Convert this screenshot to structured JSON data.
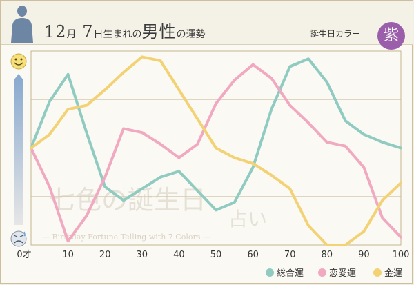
{
  "header": {
    "title_month_num": "12",
    "title_month_char": "月",
    "title_day_num": "7",
    "title_mid": "日生まれの",
    "title_big": "男性",
    "title_end": "の運勢",
    "birth_color_label": "誕生日カラー",
    "birth_color_char": "紫",
    "birth_color": "#9b5eaa"
  },
  "watermark": {
    "main": "七色の誕生日",
    "sub": "占い",
    "en": "— Birthday Fortune Telling with 7 Colors —"
  },
  "icons": {
    "top": "smile-face-icon",
    "bottom": "worried-face-icon"
  },
  "chart_data": {
    "type": "line",
    "x_tick_labels": [
      "0才",
      "10",
      "20",
      "30",
      "40",
      "50",
      "60",
      "70",
      "80",
      "90",
      "100"
    ],
    "xlim": [
      0,
      100
    ],
    "ylim": [
      0,
      100
    ],
    "grid": "horizontal",
    "legend_position": "bottom-right",
    "series": [
      {
        "name": "総合運",
        "color": "#8fcbc1",
        "x": [
          0,
          5,
          10,
          15,
          20,
          25,
          30,
          35,
          40,
          45,
          50,
          55,
          60,
          65,
          70,
          75,
          80,
          85,
          90,
          95,
          100
        ],
        "y": [
          50,
          74,
          88,
          58,
          30,
          23,
          29,
          35,
          38,
          28,
          18,
          22,
          40,
          70,
          92,
          96,
          84,
          64,
          57,
          53,
          50
        ]
      },
      {
        "name": "恋愛運",
        "color": "#f0a9c1",
        "x": [
          0,
          5,
          10,
          15,
          20,
          25,
          30,
          35,
          40,
          45,
          50,
          55,
          60,
          65,
          70,
          75,
          80,
          85,
          90,
          95,
          100
        ],
        "y": [
          50,
          30,
          2,
          15,
          35,
          60,
          58,
          52,
          45,
          52,
          73,
          85,
          93,
          86,
          72,
          63,
          53,
          51,
          40,
          14,
          4
        ]
      },
      {
        "name": "金運",
        "color": "#f3d275",
        "x": [
          0,
          5,
          10,
          15,
          20,
          25,
          30,
          35,
          40,
          45,
          50,
          55,
          60,
          65,
          70,
          75,
          80,
          85,
          90,
          95,
          100
        ],
        "y": [
          50,
          57,
          70,
          72,
          80,
          89,
          97,
          95,
          80,
          65,
          50,
          45,
          42,
          36,
          29,
          10,
          0,
          0,
          7,
          23,
          32
        ]
      }
    ]
  }
}
